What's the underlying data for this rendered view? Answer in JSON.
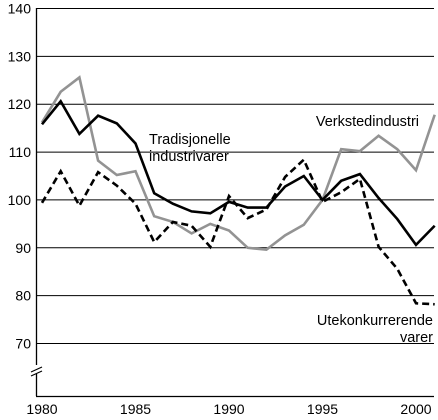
{
  "chart_data": {
    "type": "line",
    "title": "",
    "xlabel": "",
    "ylabel": "",
    "xlim": [
      1980,
      2001
    ],
    "ylim": [
      60,
      140
    ],
    "y_axis_break": true,
    "grid": "horizontal",
    "x_ticks": [
      1980,
      1985,
      1990,
      1995,
      2000
    ],
    "x_tick_labels": [
      "1980",
      "1985",
      "1990",
      "1995",
      "2000"
    ],
    "y_ticks": [
      70,
      80,
      90,
      100,
      110,
      120,
      130,
      140
    ],
    "y_tick_labels": [
      "70",
      "80",
      "90",
      "100",
      "110",
      "120",
      "130",
      "140"
    ],
    "x": [
      1980,
      1981,
      1982,
      1983,
      1984,
      1985,
      1986,
      1987,
      1988,
      1989,
      1990,
      1991,
      1992,
      1993,
      1994,
      1995,
      1996,
      1997,
      1998,
      1999,
      2000,
      2001
    ],
    "series": [
      {
        "name": "Tradisjonelle industrivarer",
        "label_lines": [
          "Tradisjonelle",
          "industrivarer"
        ],
        "style": "solid",
        "color": "#000000",
        "values": [
          115.8,
          120.6,
          113.8,
          117.6,
          116.0,
          111.8,
          101.4,
          99.2,
          97.6,
          97.2,
          99.6,
          98.4,
          98.4,
          102.8,
          105.0,
          100.0,
          104.0,
          105.4,
          100.4,
          96.0,
          90.6,
          94.6
        ]
      },
      {
        "name": "Verkstedindustri",
        "label_lines": [
          "Verkstedindustri"
        ],
        "style": "solid",
        "color": "#939393",
        "values": [
          116.2,
          122.6,
          125.6,
          108.2,
          105.2,
          106.0,
          96.6,
          95.4,
          93.0,
          95.0,
          93.6,
          90.0,
          89.6,
          92.6,
          94.8,
          100.0,
          110.6,
          110.2,
          113.4,
          110.6,
          106.2,
          117.8
        ]
      },
      {
        "name": "Utekonkurrerende varer",
        "label_lines": [
          "Utekonkurrerende",
          "varer"
        ],
        "style": "dashed",
        "color": "#000000",
        "values": [
          99.4,
          106.0,
          98.8,
          105.8,
          103.0,
          99.2,
          91.2,
          95.4,
          94.6,
          90.2,
          100.8,
          96.2,
          98.0,
          104.8,
          108.4,
          99.6,
          101.6,
          104.4,
          90.2,
          85.6,
          78.4,
          78.2
        ]
      }
    ]
  }
}
